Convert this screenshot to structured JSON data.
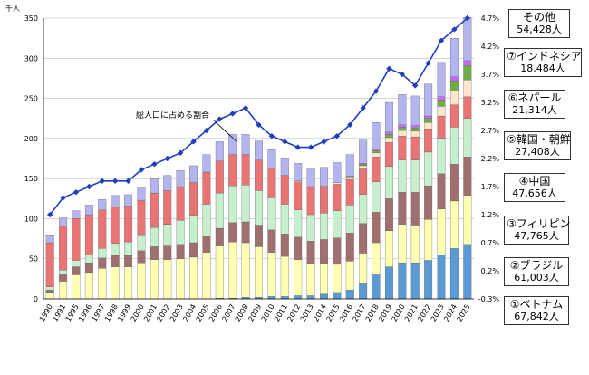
{
  "chart_data": {
    "type": "bar",
    "stacked": true,
    "unit_label": "千人",
    "categories": [
      "1990",
      "1991",
      "1995",
      "1996",
      "1997",
      "1998",
      "1999",
      "2000",
      "2001",
      "2002",
      "2003",
      "2004",
      "2005",
      "2006",
      "2007",
      "2008",
      "2009",
      "2010",
      "2011",
      "2012",
      "2013",
      "2014",
      "2015",
      "2016",
      "2017",
      "2018",
      "2019",
      "2020",
      "2021",
      "2022",
      "2023",
      "2024",
      "2025"
    ],
    "ylim": [
      0,
      350
    ],
    "yticks": [
      0,
      50,
      100,
      150,
      200,
      250,
      300,
      350
    ],
    "y2lim": [
      -0.3,
      4.7
    ],
    "y2ticks": [
      "-0.3%",
      "0.2%",
      "0.7%",
      "1.2%",
      "1.7%",
      "2.2%",
      "2.7%",
      "3.2%",
      "3.7%",
      "4.2%",
      "4.7%"
    ],
    "series": [
      {
        "name": "ベトナム",
        "color": "#5b9bd5",
        "values": [
          0,
          0,
          0,
          0,
          0,
          0,
          0,
          0,
          0,
          0,
          0,
          0,
          0,
          1,
          1,
          2,
          2,
          3,
          3,
          4,
          4,
          6,
          8,
          11,
          20,
          30,
          40,
          45,
          45,
          48,
          55,
          63,
          68
        ]
      },
      {
        "name": "ブラジル",
        "color": "#ffffb3",
        "values": [
          8,
          22,
          30,
          33,
          38,
          40,
          40,
          45,
          49,
          49,
          50,
          52,
          58,
          65,
          70,
          68,
          63,
          55,
          50,
          45,
          40,
          38,
          35,
          36,
          37,
          40,
          45,
          48,
          47,
          51,
          57,
          59,
          61
        ]
      },
      {
        "name": "フィリピン",
        "color": "#a07070",
        "values": [
          3,
          8,
          10,
          12,
          13,
          14,
          14,
          15,
          16,
          17,
          18,
          18,
          20,
          22,
          24,
          26,
          27,
          28,
          28,
          28,
          28,
          30,
          33,
          35,
          37,
          38,
          40,
          40,
          41,
          42,
          44,
          46,
          48
        ]
      },
      {
        "name": "中国",
        "color": "#c6efce",
        "values": [
          4,
          6,
          8,
          10,
          12,
          15,
          17,
          20,
          24,
          27,
          30,
          34,
          40,
          44,
          46,
          46,
          43,
          40,
          37,
          34,
          33,
          33,
          34,
          35,
          36,
          38,
          40,
          40,
          40,
          42,
          44,
          46,
          48
        ]
      },
      {
        "name": "韓国・朝鮮",
        "color": "#e87474",
        "values": [
          55,
          55,
          52,
          50,
          48,
          46,
          45,
          43,
          43,
          42,
          42,
          41,
          40,
          40,
          39,
          38,
          38,
          37,
          36,
          35,
          34,
          33,
          33,
          32,
          32,
          31,
          30,
          30,
          29,
          29,
          28,
          28,
          27
        ]
      },
      {
        "name": "ネパール",
        "color": "#ffe5cc",
        "values": [
          0,
          0,
          0,
          0,
          0,
          0,
          0,
          0,
          0,
          0,
          0,
          0,
          0,
          0,
          0,
          0,
          0,
          0,
          0,
          1,
          1,
          1,
          2,
          3,
          4,
          5,
          6,
          7,
          7,
          8,
          12,
          17,
          21
        ]
      },
      {
        "name": "インドネシア",
        "color": "#70ad47",
        "values": [
          0,
          0,
          0,
          0,
          0,
          0,
          0,
          0,
          0,
          0,
          0,
          0,
          0,
          0,
          0,
          0,
          0,
          0,
          0,
          0,
          0,
          0,
          0,
          1,
          2,
          3,
          4,
          4,
          4,
          5,
          8,
          13,
          18
        ]
      },
      {
        "name": "",
        "color": "#cc66ff",
        "values": [
          0,
          0,
          0,
          0,
          0,
          0,
          0,
          0,
          0,
          0,
          0,
          0,
          0,
          0,
          0,
          0,
          0,
          0,
          0,
          0,
          0,
          0,
          0,
          0,
          1,
          2,
          3,
          3,
          3,
          3,
          4,
          5,
          6
        ]
      },
      {
        "name": "その他",
        "color": "#b4b4ee",
        "values": [
          10,
          10,
          10,
          12,
          13,
          14,
          14,
          16,
          18,
          19,
          20,
          21,
          22,
          24,
          25,
          25,
          24,
          23,
          22,
          22,
          22,
          23,
          25,
          27,
          29,
          33,
          37,
          38,
          37,
          40,
          43,
          48,
          54
        ]
      }
    ],
    "ratio_series": {
      "color": "#1f3fbf",
      "values": [
        1.2,
        1.5,
        1.6,
        1.7,
        1.8,
        1.8,
        1.8,
        2.0,
        2.1,
        2.2,
        2.3,
        2.5,
        2.7,
        2.9,
        3.0,
        3.1,
        2.8,
        2.6,
        2.5,
        2.4,
        2.4,
        2.5,
        2.6,
        2.8,
        3.1,
        3.4,
        3.8,
        3.7,
        3.5,
        3.9,
        4.3,
        4.5,
        4.7
      ]
    },
    "annotation": "総人口に占める割合",
    "legend": [
      {
        "label": "その他",
        "value": "54,428人"
      },
      {
        "label": "⑦インドネシア",
        "value": "18,484人"
      },
      {
        "label": "⑥ネパール",
        "value": "21,314人"
      },
      {
        "label": "⑤韓国・朝鮮",
        "value": "27,408人"
      },
      {
        "label": "④中国",
        "value": "47,656人"
      },
      {
        "label": "③フィリピン",
        "value": "47,765人"
      },
      {
        "label": "②ブラジル",
        "value": "61,003人"
      },
      {
        "label": "①ベトナム",
        "value": "67,842人"
      }
    ]
  }
}
